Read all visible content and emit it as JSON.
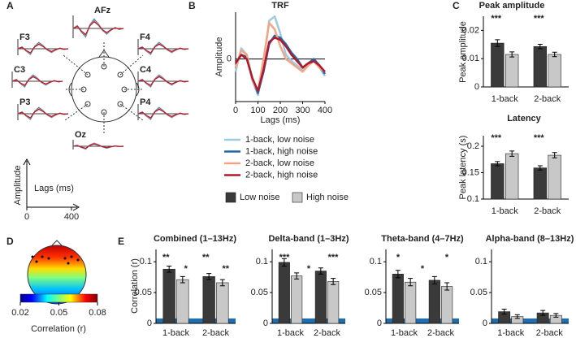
{
  "panel_labels": [
    "A",
    "B",
    "C",
    "D",
    "E"
  ],
  "panel_a": {
    "electrodes": [
      "AFz",
      "F3",
      "F4",
      "C3",
      "C4",
      "P3",
      "P4",
      "Oz"
    ],
    "y_label": "Amplitude",
    "x_label": "Lags (ms)",
    "xticks": [
      0,
      400
    ]
  },
  "panel_d": {
    "colorbar_lim": [
      0.02,
      0.08
    ],
    "colorbar_ticks": [
      0.02,
      0.05,
      0.08
    ],
    "colorbar_label": "Correlation (r)"
  },
  "chart_data": [
    {
      "type": "line",
      "title": "TRF",
      "y_label": "Amplitude",
      "x_label": "Lags (ms)",
      "x": [
        0,
        25,
        50,
        75,
        100,
        125,
        150,
        175,
        200,
        225,
        250,
        275,
        300,
        325,
        350,
        375,
        400
      ],
      "series": [
        {
          "name": "1-back, low noise",
          "color": "#9ecae1",
          "values": [
            -0.3,
            0.25,
            0.1,
            -0.5,
            -0.85,
            -0.1,
            0.9,
            1.0,
            0.6,
            0.1,
            -0.05,
            -0.15,
            -0.25,
            -0.1,
            -0.05,
            -0.2,
            -0.4
          ]
        },
        {
          "name": "1-back, high noise",
          "color": "#2166ac",
          "values": [
            -0.1,
            0.1,
            0.05,
            -0.45,
            -0.8,
            -0.3,
            0.35,
            0.55,
            0.5,
            0.35,
            0.15,
            0,
            -0.2,
            -0.1,
            0,
            -0.15,
            -0.35
          ]
        },
        {
          "name": "2-back, low noise",
          "color": "#f4a582",
          "values": [
            -0.2,
            0.2,
            0.1,
            -0.5,
            -0.75,
            0,
            0.85,
            0.7,
            0.3,
            0,
            -0.1,
            -0.2,
            -0.3,
            -0.15,
            -0.05,
            -0.2,
            -0.3
          ]
        },
        {
          "name": "2-back, high noise",
          "color": "#b2182b",
          "values": [
            -0.1,
            0.1,
            0,
            -0.45,
            -0.75,
            -0.25,
            0.4,
            0.5,
            0.45,
            0.3,
            0.1,
            -0.05,
            -0.2,
            -0.1,
            -0.05,
            -0.15,
            -0.3
          ]
        }
      ],
      "xlim": [
        0,
        400
      ],
      "xticks": [
        0,
        100,
        200,
        300,
        400
      ],
      "ylim": [
        -1,
        1.1
      ],
      "yticks": [
        0
      ]
    },
    {
      "type": "bar",
      "title": "Peak amplitude",
      "y_label": "Peak amplitude",
      "categories": [
        "1-back",
        "2-back"
      ],
      "series": [
        {
          "name": "Low noise",
          "color": "#3a3a3a",
          "values": [
            0.0155,
            0.0143
          ],
          "errors": [
            0.0012,
            0.0008
          ]
        },
        {
          "name": "High noise",
          "color": "#c8c8c8",
          "values": [
            0.0115,
            0.0115
          ],
          "errors": [
            0.0009,
            0.0008
          ]
        }
      ],
      "ylim": [
        0,
        0.025
      ],
      "yticks": [
        0,
        0.01,
        0.02
      ],
      "annotations": [
        "***",
        "***"
      ]
    },
    {
      "type": "bar",
      "title": "Latency",
      "y_label": "Peak latency (s)",
      "categories": [
        "1-back",
        "2-back"
      ],
      "series": [
        {
          "color": "#3a3a3a",
          "values": [
            0.167,
            0.159
          ],
          "errors": [
            0.004,
            0.004
          ]
        },
        {
          "color": "#c8c8c8",
          "values": [
            0.186,
            0.183
          ],
          "errors": [
            0.005,
            0.005
          ]
        }
      ],
      "ylim": [
        0.1,
        0.22
      ],
      "yticks": [
        0.1,
        0.15,
        0.2
      ],
      "annotations": [
        "***",
        "***"
      ]
    },
    {
      "type": "bar",
      "title": "Combined (1–13Hz)",
      "y_label": "Correlation (r)",
      "categories": [
        "1-back",
        "2-back"
      ],
      "series": [
        {
          "color": "#3a3a3a",
          "values": [
            0.088,
            0.076
          ],
          "errors": [
            0.005,
            0.005
          ]
        },
        {
          "color": "#c8c8c8",
          "values": [
            0.071,
            0.066
          ],
          "errors": [
            0.005,
            0.005
          ]
        }
      ],
      "ylim": [
        0,
        0.12
      ],
      "yticks": [
        0,
        0.05,
        0.1
      ],
      "chance_level": 0.008,
      "annotations": [
        "**",
        "*",
        "**",
        "**"
      ]
    },
    {
      "type": "bar",
      "title": "Delta-band (1–3Hz)",
      "categories": [
        "1-back",
        "2-back"
      ],
      "series": [
        {
          "color": "#3a3a3a",
          "values": [
            0.099,
            0.085
          ],
          "errors": [
            0.006,
            0.005
          ]
        },
        {
          "color": "#c8c8c8",
          "values": [
            0.077,
            0.068
          ],
          "errors": [
            0.005,
            0.005
          ]
        }
      ],
      "ylim": [
        0,
        0.12
      ],
      "yticks": [
        0,
        0.05,
        0.1
      ],
      "chance_level": 0.008,
      "annotations": [
        "***",
        "*",
        "***"
      ]
    },
    {
      "type": "bar",
      "title": "Theta-band (4–7Hz)",
      "categories": [
        "1-back",
        "2-back"
      ],
      "series": [
        {
          "color": "#3a3a3a",
          "values": [
            0.08,
            0.07
          ],
          "errors": [
            0.006,
            0.006
          ]
        },
        {
          "color": "#c8c8c8",
          "values": [
            0.067,
            0.06
          ],
          "errors": [
            0.006,
            0.006
          ]
        }
      ],
      "ylim": [
        0,
        0.12
      ],
      "yticks": [
        0,
        0.05,
        0.1
      ],
      "chance_level": 0.008,
      "annotations": [
        "*",
        "*",
        "*"
      ]
    },
    {
      "type": "bar",
      "title": "Alpha-band (8–13Hz)",
      "categories": [
        "1-back",
        "2-back"
      ],
      "series": [
        {
          "color": "#3a3a3a",
          "values": [
            0.019,
            0.017
          ],
          "errors": [
            0.004,
            0.004
          ]
        },
        {
          "color": "#c8c8c8",
          "values": [
            0.011,
            0.013
          ],
          "errors": [
            0.003,
            0.003
          ]
        }
      ],
      "ylim": [
        0,
        0.12
      ],
      "yticks": [
        0,
        0.05,
        0.1
      ],
      "chance_level": 0.008
    }
  ]
}
